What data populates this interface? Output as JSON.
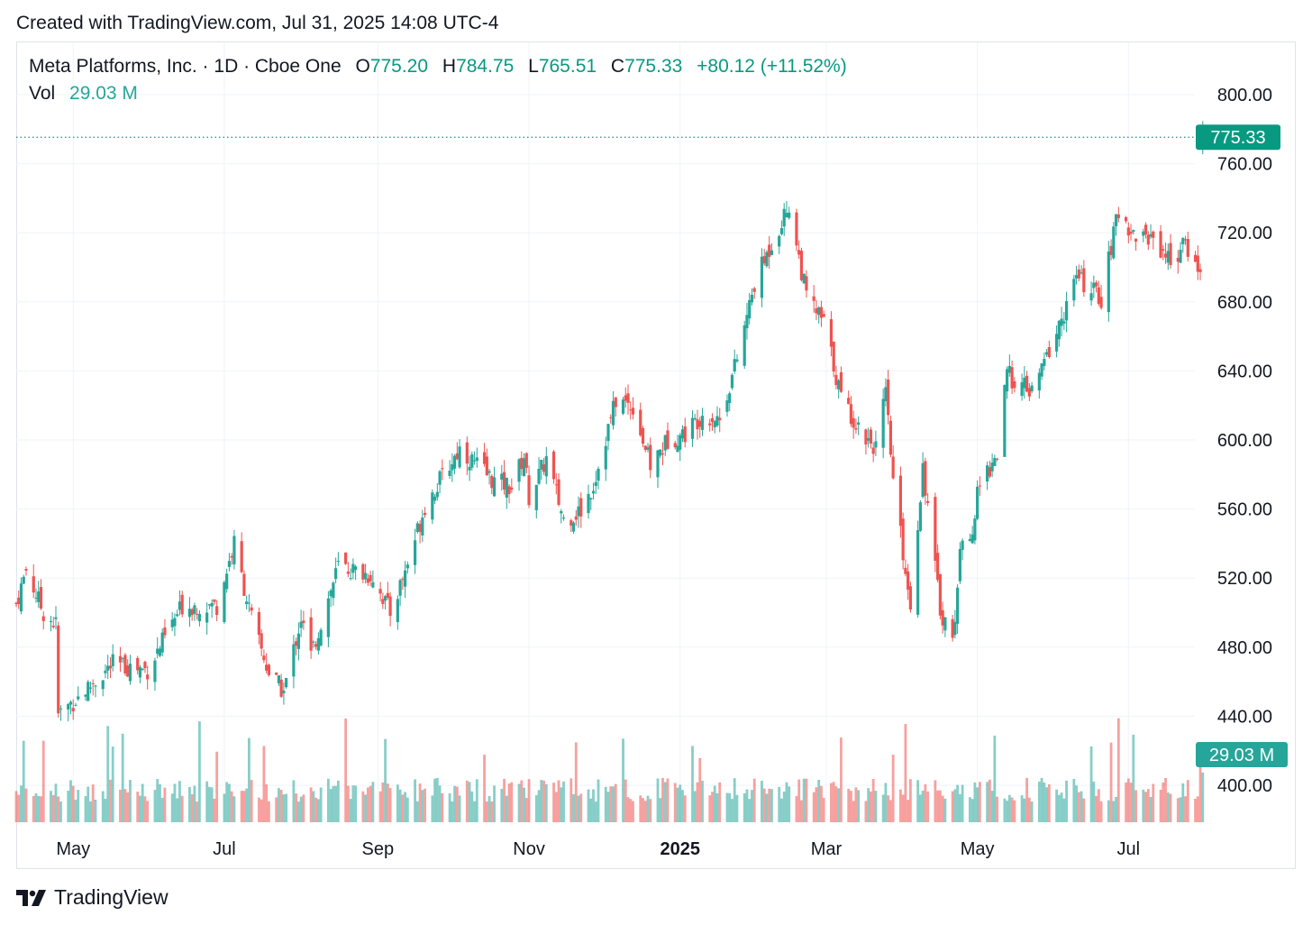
{
  "header": {
    "created_text": "Created with TradingView.com, Jul 31, 2025 14:08 UTC-4"
  },
  "legend": {
    "symbol": "Meta Platforms, Inc. · 1D · Cboe One",
    "o_label": "O",
    "o_value": "775.20",
    "h_label": "H",
    "h_value": "784.75",
    "l_label": "L",
    "l_value": "765.51",
    "c_label": "C",
    "c_value": "775.33",
    "change": "+80.12 (+11.52%)",
    "vol_label": "Vol",
    "vol_value": "29.03 M"
  },
  "footer": {
    "brand": "TradingView"
  },
  "colors": {
    "up": "#26a69a",
    "down": "#ef5350",
    "up_text": "#089981",
    "grid": "#f0f3fa",
    "axis_text": "#131722"
  },
  "chart_data": {
    "type": "candlestick",
    "title": "Meta Platforms, Inc. · 1D · Cboe One",
    "ylim": [
      385,
      820
    ],
    "y_ticks": [
      "400.00",
      "440.00",
      "480.00",
      "520.00",
      "560.00",
      "600.00",
      "640.00",
      "680.00",
      "720.00",
      "760.00",
      "800.00"
    ],
    "x_ticks": [
      "May",
      "Jul",
      "Sep",
      "Nov",
      "2025",
      "Mar",
      "May",
      "Jul"
    ],
    "x_tick_dates": [
      "2024-05-01",
      "2024-07-01",
      "2024-09-01",
      "2024-11-01",
      "2025-01-01",
      "2025-03-01",
      "2025-05-01",
      "2025-07-01"
    ],
    "x_range": [
      "2024-04-08",
      "2025-08-31"
    ],
    "last_price_label": "775.33",
    "last_price": 775.33,
    "last_volume_label": "29.03 M",
    "grid": true,
    "price_key_points": [
      [
        "2024-04-08",
        505
      ],
      [
        "2024-04-12",
        525
      ],
      [
        "2024-04-19",
        500
      ],
      [
        "2024-04-24",
        493
      ],
      [
        "2024-04-25",
        441
      ],
      [
        "2024-05-03",
        451
      ],
      [
        "2024-05-17",
        470
      ],
      [
        "2024-05-31",
        467
      ],
      [
        "2024-06-14",
        504
      ],
      [
        "2024-06-28",
        504
      ],
      [
        "2024-07-05",
        540
      ],
      [
        "2024-07-12",
        496
      ],
      [
        "2024-07-19",
        465
      ],
      [
        "2024-07-25",
        454
      ],
      [
        "2024-08-01",
        497
      ],
      [
        "2024-08-05",
        475
      ],
      [
        "2024-08-16",
        527
      ],
      [
        "2024-08-30",
        521
      ],
      [
        "2024-09-06",
        500
      ],
      [
        "2024-09-12",
        524
      ],
      [
        "2024-09-20",
        562
      ],
      [
        "2024-10-04",
        595
      ],
      [
        "2024-10-18",
        576
      ],
      [
        "2024-10-25",
        573
      ],
      [
        "2024-10-30",
        591
      ],
      [
        "2024-11-01",
        567
      ],
      [
        "2024-11-08",
        589
      ],
      [
        "2024-11-15",
        554
      ],
      [
        "2024-11-22",
        559
      ],
      [
        "2024-11-27",
        574
      ],
      [
        "2024-12-06",
        623
      ],
      [
        "2024-12-13",
        620
      ],
      [
        "2024-12-20",
        585
      ],
      [
        "2024-12-27",
        600
      ],
      [
        "2025-01-03",
        604
      ],
      [
        "2025-01-10",
        615
      ],
      [
        "2025-01-17",
        612
      ],
      [
        "2025-01-24",
        647
      ],
      [
        "2025-01-31",
        690
      ],
      [
        "2025-02-07",
        714
      ],
      [
        "2025-02-14",
        736
      ],
      [
        "2025-02-21",
        683
      ],
      [
        "2025-02-28",
        668
      ],
      [
        "2025-03-07",
        625
      ],
      [
        "2025-03-14",
        607
      ],
      [
        "2025-03-21",
        596
      ],
      [
        "2025-03-25",
        626
      ],
      [
        "2025-03-28",
        576
      ],
      [
        "2025-04-04",
        504
      ],
      [
        "2025-04-09",
        585
      ],
      [
        "2025-04-16",
        502
      ],
      [
        "2025-04-21",
        484
      ],
      [
        "2025-04-25",
        547
      ],
      [
        "2025-04-30",
        549
      ],
      [
        "2025-05-01",
        572
      ],
      [
        "2025-05-09",
        592
      ],
      [
        "2025-05-13",
        638
      ],
      [
        "2025-05-23",
        627
      ],
      [
        "2025-06-03",
        666
      ],
      [
        "2025-06-10",
        694
      ],
      [
        "2025-06-20",
        682
      ],
      [
        "2025-06-27",
        733
      ],
      [
        "2025-07-03",
        719
      ],
      [
        "2025-07-11",
        717
      ],
      [
        "2025-07-18",
        704
      ],
      [
        "2025-07-24",
        713
      ],
      [
        "2025-07-29",
        700
      ],
      [
        "2025-07-30",
        695
      ],
      [
        "2025-07-31",
        775.33
      ]
    ]
  }
}
